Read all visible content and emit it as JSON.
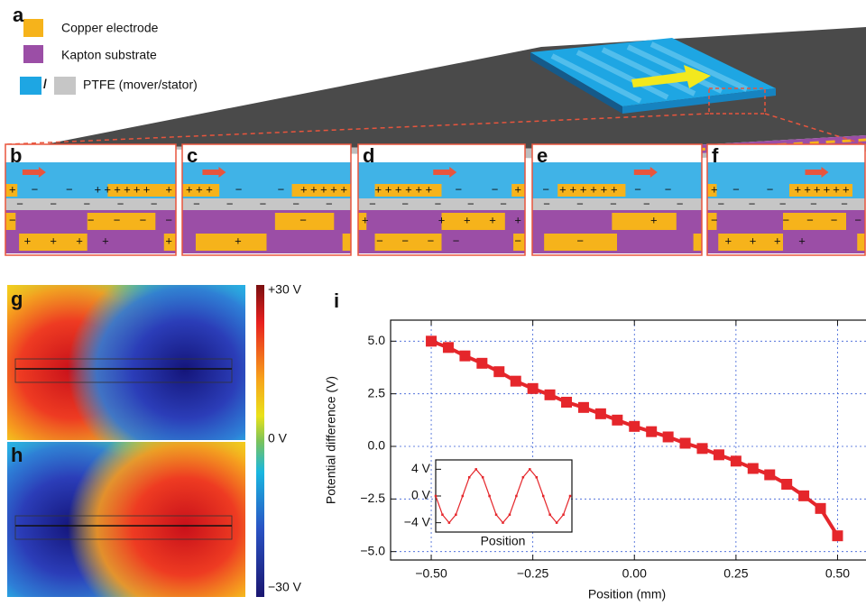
{
  "panel_a": {
    "label": "a",
    "legend": [
      {
        "label": "Copper electrode",
        "color": "#f6b31b"
      },
      {
        "label": "Kapton substrate",
        "color": "#9b4ea6"
      },
      {
        "label": "PTFE (mover/stator)",
        "colors": [
          "#1ea6e3",
          "#c6c6c6"
        ],
        "separator": "/"
      }
    ]
  },
  "panels": [
    {
      "label": "b",
      "rows": [
        "+  −    −   ++++++  +",
        " −   −   −   −   −  ",
        "−         −  −  −  −",
        "  +  +  +  +       +"
      ]
    },
    {
      "label": "c",
      "rows": [
        "+++   −     −  +++++",
        " −   −   −   −   −  ",
        "              −     ",
        "      +             "
      ]
    },
    {
      "label": "d",
      "rows": [
        "  ++++++   −    −  +",
        " −   −   −   −   −  ",
        "+         +  +  +  +",
        "  −  −  −  −       −"
      ]
    },
    {
      "label": "e",
      "rows": [
        " − ++++++  −   −    ",
        " −   −   −   −   −  ",
        "              +     ",
        "     −              "
      ]
    },
    {
      "label": "f",
      "rows": [
        "+  −    −   ++++++  ",
        " −   −   −   −   −  ",
        "−         −  −  −  −",
        "  +  +  +  +        "
      ]
    }
  ],
  "field_maps": {
    "labels": [
      "g",
      "h"
    ],
    "colorbar": [
      "+30 V",
      "0 V",
      "−30 V"
    ]
  },
  "chart_data": [
    {
      "type": "line",
      "label": "i",
      "xlabel": "Position (mm)",
      "ylabel": "Potential difference (V)",
      "color": "#e5262b",
      "marker": "square",
      "grid": true,
      "x": [
        -0.5,
        -0.458,
        -0.417,
        -0.375,
        -0.333,
        -0.292,
        -0.25,
        -0.208,
        -0.167,
        -0.125,
        -0.083,
        -0.042,
        0,
        0.042,
        0.083,
        0.125,
        0.167,
        0.208,
        0.25,
        0.292,
        0.333,
        0.375,
        0.417,
        0.458,
        0.5
      ],
      "values": [
        5.0,
        4.7,
        4.3,
        3.95,
        3.55,
        3.1,
        2.75,
        2.45,
        2.1,
        1.85,
        1.55,
        1.25,
        0.95,
        0.7,
        0.45,
        0.15,
        -0.1,
        -0.4,
        -0.7,
        -1.05,
        -1.35,
        -1.8,
        -2.35,
        -2.95,
        -4.25
      ],
      "xlim": [
        -0.6,
        0.57
      ],
      "ylim": [
        -5.4,
        6.0
      ],
      "xticks": [
        {
          "value": -0.5,
          "label": "−0.50"
        },
        {
          "value": -0.25,
          "label": "−0.25"
        },
        {
          "value": 0,
          "label": "0.00"
        },
        {
          "value": 0.25,
          "label": "0.25"
        },
        {
          "value": 0.5,
          "label": "0.50"
        }
      ],
      "yticks": [
        {
          "value": 5,
          "label": "5.0"
        },
        {
          "value": 2.5,
          "label": "2.5"
        },
        {
          "value": 0,
          "label": "0.0"
        },
        {
          "value": -2.5,
          "label": "−2.5"
        },
        {
          "value": -5,
          "label": "−5.0"
        }
      ]
    },
    {
      "type": "line",
      "xlabel": "Position",
      "color": "#e5262b",
      "x": [
        0,
        1,
        2,
        3,
        4,
        5,
        6,
        7,
        8,
        9,
        10,
        11,
        12,
        13,
        14,
        15,
        16,
        17,
        18,
        19,
        20
      ],
      "values": [
        0,
        -2.8,
        -4,
        -2.8,
        0,
        2.8,
        4,
        2.8,
        0,
        -2.8,
        -4,
        -2.8,
        0,
        2.8,
        4,
        2.8,
        0,
        -2.8,
        -4,
        -2.8,
        0
      ],
      "xlim": [
        0,
        20
      ],
      "ylim": [
        -5.4,
        5.4
      ],
      "yticks": [
        {
          "value": 4,
          "label": "4 V"
        },
        {
          "value": 0,
          "label": "0 V"
        },
        {
          "value": -4,
          "label": "−4 V"
        }
      ]
    }
  ]
}
